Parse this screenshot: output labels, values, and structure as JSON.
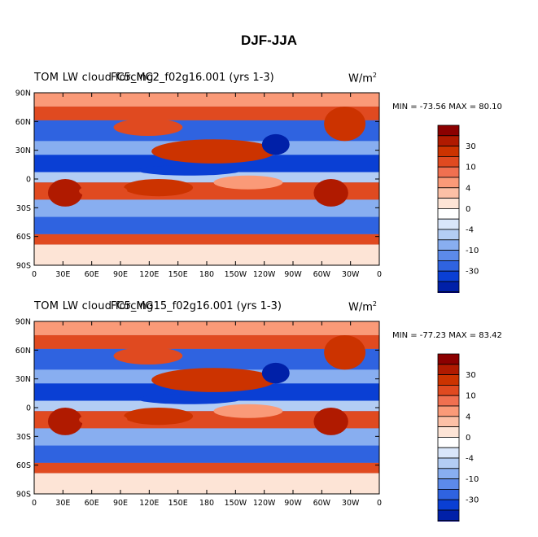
{
  "figure_title": "DJF-JJA",
  "panels": [
    {
      "title_left": "TOM LW cloud forcing",
      "title_case": "FC5_MC2_f02g16.001 (yrs 1-3)",
      "units": "W/m",
      "units_exp": "2",
      "min_label": "MIN = -73.56",
      "max_label": "MAX =  80.10"
    },
    {
      "title_left": "TOM LW cloud forcing",
      "title_case": "FC5_MG15_f02g16.001 (yrs 1-3)",
      "units": "W/m",
      "units_exp": "2",
      "min_label": "MIN = -77.23",
      "max_label": "MAX =  83.42"
    }
  ],
  "lat_labels": [
    "90N",
    "60N",
    "30N",
    "0",
    "30S",
    "60S",
    "90S"
  ],
  "lon_labels": [
    "0",
    "30E",
    "60E",
    "90E",
    "120E",
    "150E",
    "180",
    "150W",
    "120W",
    "90W",
    "60W",
    "30W",
    "0"
  ],
  "colorbar": {
    "colors": [
      "#8b0000",
      "#b01a00",
      "#cc3300",
      "#e04a20",
      "#f07050",
      "#fa9a78",
      "#fcc0a6",
      "#fde4d6",
      "#ffffff",
      "#d9e6fa",
      "#b3cdf4",
      "#88aef0",
      "#5c8aea",
      "#2f63e0",
      "#0a3fd4",
      "#0020a8",
      "#000080"
    ],
    "labels": [
      "30",
      "",
      "10",
      "",
      "4",
      "",
      "0",
      "",
      "-4",
      "",
      "-10",
      "",
      "-30"
    ],
    "label_values": [
      "30",
      "10",
      "4",
      "0",
      "-4",
      "-10",
      "-30"
    ]
  }
}
